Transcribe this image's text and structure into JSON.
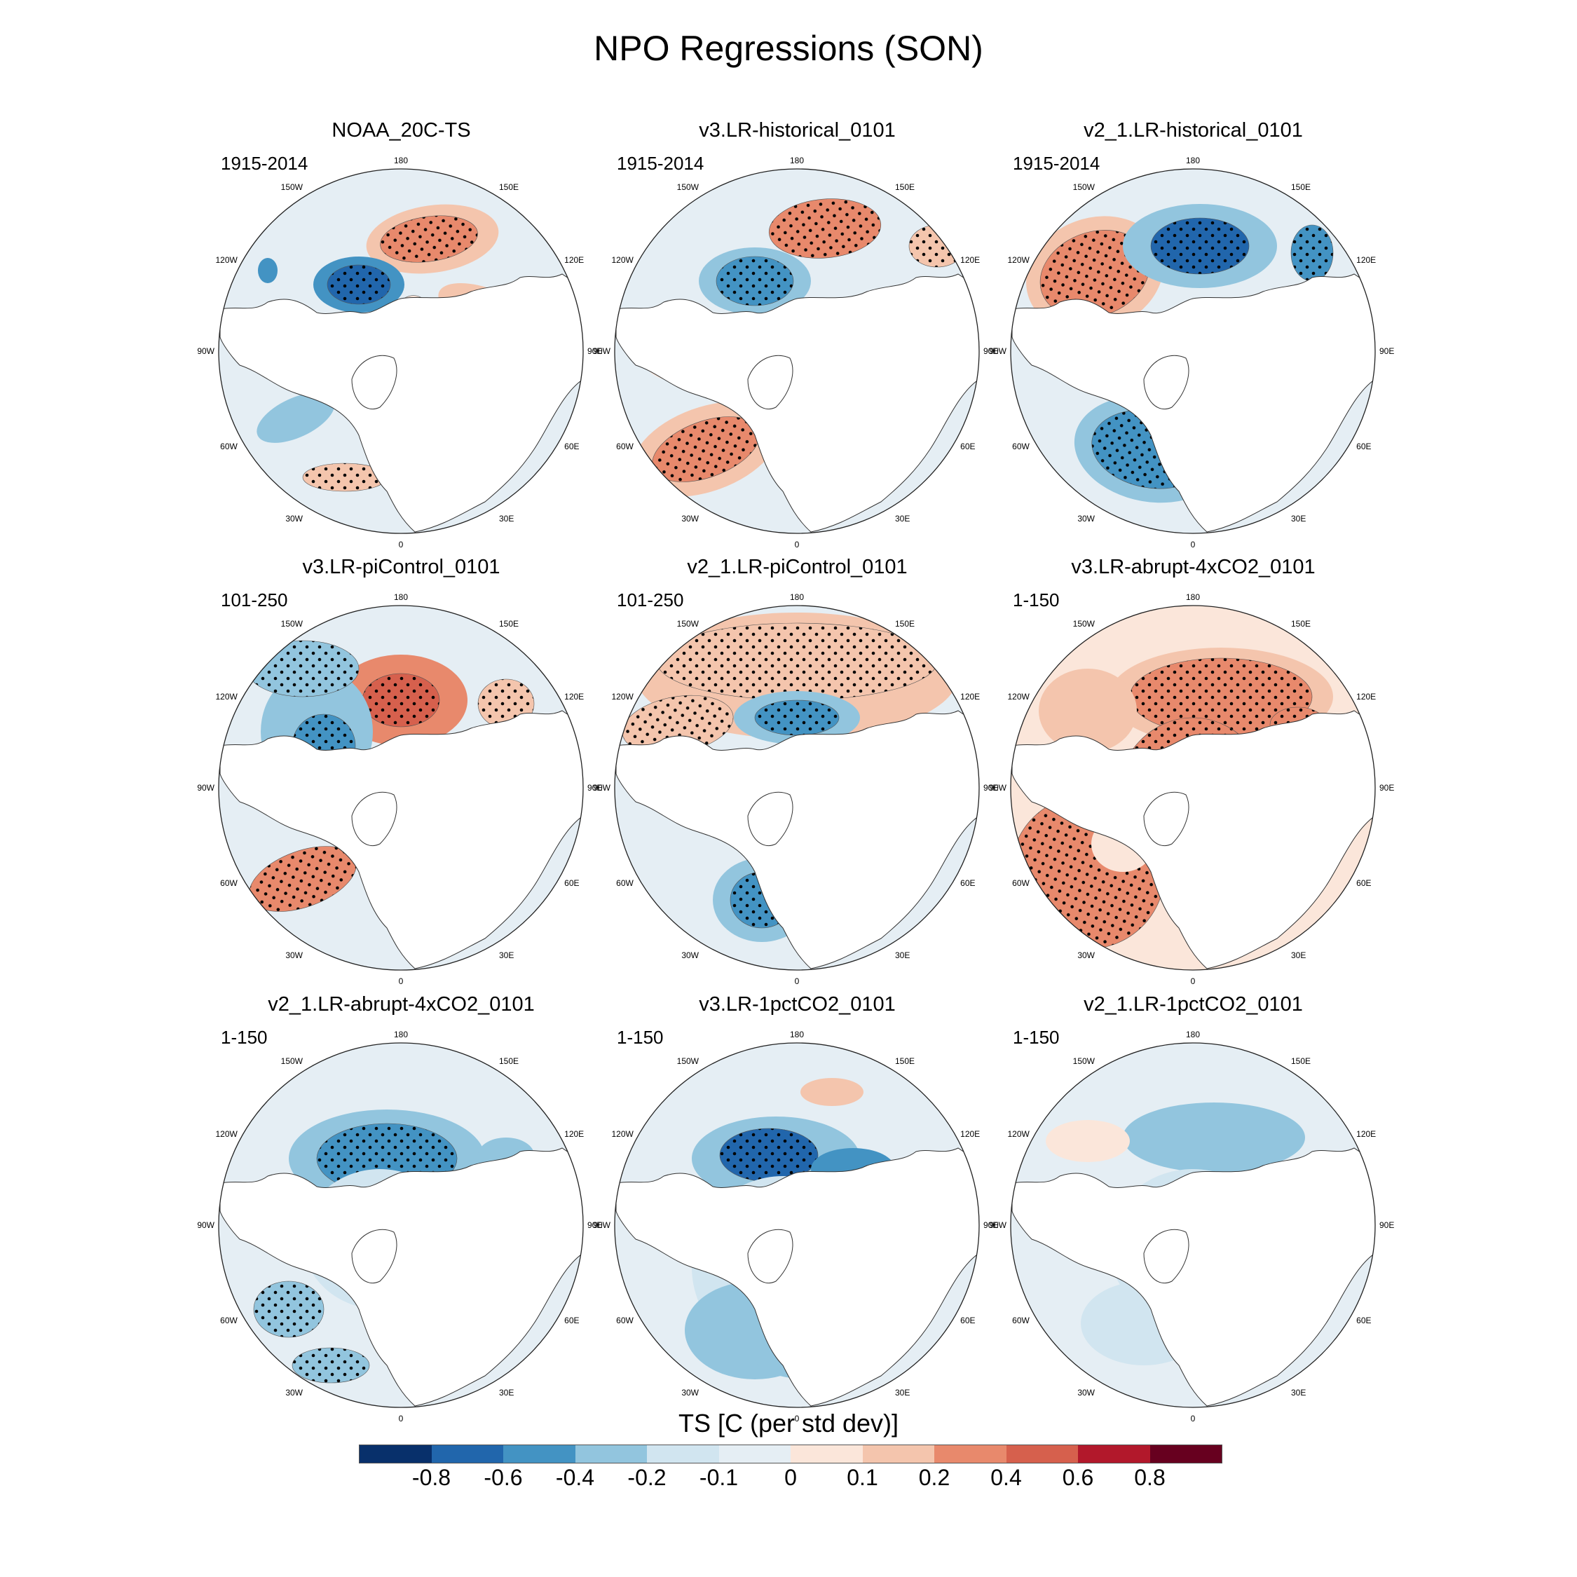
{
  "title": "NPO Regressions (SON)",
  "colorbar": {
    "title": "TS [C (per std dev)]",
    "colors": [
      "#08306b",
      "#2166ac",
      "#4393c3",
      "#92c5de",
      "#d1e5f0",
      "#e5eef4",
      "#fbe6da",
      "#f4c5ad",
      "#e8896c",
      "#d6604d",
      "#b2182b",
      "#67001f"
    ],
    "tick_labels": [
      "-0.8",
      "-0.6",
      "-0.4",
      "-0.2",
      "-0.1",
      "0",
      "0.1",
      "0.2",
      "0.4",
      "0.6",
      "0.8"
    ]
  },
  "map_labels": {
    "lon_180": "180",
    "lon_150w": "150W",
    "lon_150e": "150E",
    "lon_120w": "120W",
    "lon_120e": "120E",
    "lon_90w": "90W",
    "lon_90e": "90E",
    "lon_60w": "60W",
    "lon_60e": "60E",
    "lon_30w": "30W",
    "lon_30e": "30E",
    "lon_0": "0"
  },
  "panels": [
    {
      "title": "NOAA_20C-TS",
      "period": "1915-2014"
    },
    {
      "title": "v3.LR-historical_0101",
      "period": "1915-2014"
    },
    {
      "title": "v2_1.LR-historical_0101",
      "period": "1915-2014"
    },
    {
      "title": "v3.LR-piControl_0101",
      "period": "101-250"
    },
    {
      "title": "v2_1.LR-piControl_0101",
      "period": "101-250"
    },
    {
      "title": "v3.LR-abrupt-4xCO2_0101",
      "period": "1-150"
    },
    {
      "title": "v2_1.LR-abrupt-4xCO2_0101",
      "period": "1-150"
    },
    {
      "title": "v3.LR-1pctCO2_0101",
      "period": "1-150"
    },
    {
      "title": "v2_1.LR-1pctCO2_0101",
      "period": "1-150"
    }
  ]
}
